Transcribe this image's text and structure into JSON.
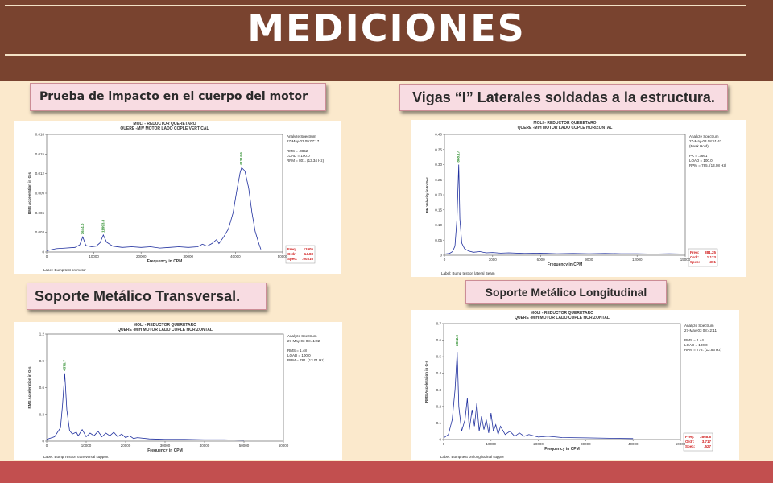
{
  "page": {
    "title": "MEDICIONES"
  },
  "panels": [
    {
      "label": "Prueba de impacto en el cuerpo del motor",
      "chart_data": {
        "type": "line",
        "title_lines": [
          "MOLI - REDUCTOR QUERETARO",
          "QUERE -MIV MOTOR LADO COPLE VERTICAL"
        ],
        "ylabel": "RMS Acceleration in G-s",
        "xlabel": "Frequency in CPM",
        "ylim": [
          0,
          0.018
        ],
        "xlim": [
          0,
          50000
        ],
        "yticks": [
          "0",
          "0.003",
          "0.006",
          "0.009",
          "0.012",
          "0.015",
          "0.018"
        ],
        "xticks": [
          "0",
          "10000",
          "20000",
          "30000",
          "40000",
          "50000"
        ],
        "info": [
          "Analyze Spectrum",
          "27-May-03 09:07:17",
          "",
          "RMS = .0852",
          "LOAD = 100.0",
          "RPM = 801. (13.34 Hz)"
        ],
        "peak_labels": [
          {
            "x": 7644.0,
            "y": 0.0023,
            "text": "7644.0"
          },
          {
            "x": 11993.8,
            "y": 0.0026,
            "text": "11993.8"
          },
          {
            "x": 41314.6,
            "y": 0.0129,
            "text": "41314.6"
          }
        ],
        "footer_label": "Label: Bump test on motor",
        "freq_box": [
          "Freq:",
          "Ordr:",
          "Spec:"
        ],
        "freq_values": [
          "11905",
          "14.83",
          ".00316"
        ],
        "points": [
          [
            0,
            0.0002
          ],
          [
            2000,
            0.0005
          ],
          [
            4000,
            0.0006
          ],
          [
            6000,
            0.0007
          ],
          [
            7000,
            0.0011
          ],
          [
            7644,
            0.0023
          ],
          [
            8300,
            0.001
          ],
          [
            9500,
            0.0008
          ],
          [
            10500,
            0.0009
          ],
          [
            11300,
            0.0014
          ],
          [
            11994,
            0.0026
          ],
          [
            12700,
            0.0015
          ],
          [
            14000,
            0.0009
          ],
          [
            16000,
            0.0007
          ],
          [
            18000,
            0.0008
          ],
          [
            20000,
            0.0007
          ],
          [
            22000,
            0.0008
          ],
          [
            24000,
            0.0006
          ],
          [
            26000,
            0.0007
          ],
          [
            28000,
            0.0008
          ],
          [
            30000,
            0.0007
          ],
          [
            32000,
            0.0008
          ],
          [
            33000,
            0.0012
          ],
          [
            34000,
            0.0009
          ],
          [
            35000,
            0.0013
          ],
          [
            36000,
            0.0019
          ],
          [
            36500,
            0.0013
          ],
          [
            37500,
            0.0023
          ],
          [
            38500,
            0.0035
          ],
          [
            39500,
            0.006
          ],
          [
            40300,
            0.0095
          ],
          [
            41000,
            0.0122
          ],
          [
            41314,
            0.0129
          ],
          [
            42000,
            0.0124
          ],
          [
            42800,
            0.0098
          ],
          [
            43500,
            0.006
          ],
          [
            44200,
            0.0031
          ],
          [
            45000,
            0.0012
          ],
          [
            45400,
            0.0004
          ]
        ]
      }
    },
    {
      "label": "Vigas “I” Laterales soldadas a la estructura.",
      "chart_data": {
        "type": "line",
        "title_lines": [
          "MOLI - REDUCTOR QUERETARO",
          "QUERE -MIH MOTOR LADO COPLE HORIZONTAL"
        ],
        "ylabel": "PK Velocity in In/Sec",
        "xlabel": "Frequency in CPM",
        "ylim": [
          0,
          0.4
        ],
        "xlim": [
          0,
          15000
        ],
        "yticks": [
          "0",
          "0.05",
          "0.10",
          "0.15",
          "0.20",
          "0.25",
          "0.30",
          "0.35",
          "0.40"
        ],
        "xticks": [
          "0",
          "3000",
          "6000",
          "9000",
          "12000",
          "15000"
        ],
        "info": [
          "Analyze Spectrum",
          "27-May-03 08:51:43",
          "(Peak Hold)",
          "",
          "PK = .3661",
          "LOAD = 100.0",
          "RPM = 785. (13.08 Hz)"
        ],
        "peak_labels": [
          {
            "x": 888.17,
            "y": 0.3,
            "text": "888.17"
          }
        ],
        "footer_label": "Label: Bump test on lateral Beam",
        "freq_box": [
          "Freq:",
          "Ordr:",
          "Spec:"
        ],
        "freq_values": [
          "881.25",
          "1.123",
          ".301"
        ],
        "points": [
          [
            0,
            0.004
          ],
          [
            300,
            0.006
          ],
          [
            500,
            0.012
          ],
          [
            650,
            0.03
          ],
          [
            780,
            0.12
          ],
          [
            888,
            0.3
          ],
          [
            960,
            0.12
          ],
          [
            1080,
            0.04
          ],
          [
            1250,
            0.022
          ],
          [
            1500,
            0.014
          ],
          [
            1800,
            0.01
          ],
          [
            2200,
            0.012
          ],
          [
            2600,
            0.008
          ],
          [
            3000,
            0.009
          ],
          [
            3500,
            0.007
          ],
          [
            4000,
            0.008
          ],
          [
            5000,
            0.006
          ],
          [
            6000,
            0.007
          ],
          [
            7000,
            0.005
          ],
          [
            8000,
            0.006
          ],
          [
            9000,
            0.005
          ],
          [
            10000,
            0.006
          ],
          [
            11000,
            0.005
          ],
          [
            12000,
            0.005
          ],
          [
            13000,
            0.004
          ],
          [
            14000,
            0.005
          ],
          [
            15000,
            0.004
          ]
        ]
      }
    },
    {
      "label": "Soporte Metálico Transversal.",
      "chart_data": {
        "type": "line",
        "title_lines": [
          "MOLI - REDUCTOR QUERETARO",
          "QUERE -MIH MOTOR LADO COPLE HORIZONTAL"
        ],
        "ylabel": "RMS Acceleration in G-s",
        "xlabel": "Frequency in CPM",
        "ylim": [
          0,
          1.2
        ],
        "xlim": [
          0,
          60000
        ],
        "yticks": [
          "0",
          "0.3",
          "0.6",
          "0.9",
          "1.2"
        ],
        "xticks": [
          "0",
          "10000",
          "20000",
          "30000",
          "40000",
          "50000",
          "60000"
        ],
        "info": [
          "Analyze Spectrum",
          "27-May-03 08:41:02",
          "",
          "RMS = 1.48",
          "LOAD = 100.0",
          "RPM = 781. (13.01 Hz)"
        ],
        "peak_labels": [
          {
            "x": 4578.7,
            "y": 0.76,
            "text": "4578.7"
          }
        ],
        "footer_label": "Label: Bump Test on transversal support",
        "freq_box": [],
        "freq_values": [],
        "points": [
          [
            0,
            0.02
          ],
          [
            2000,
            0.05
          ],
          [
            3500,
            0.15
          ],
          [
            4000,
            0.4
          ],
          [
            4578,
            0.76
          ],
          [
            5100,
            0.35
          ],
          [
            5800,
            0.12
          ],
          [
            6500,
            0.08
          ],
          [
            7500,
            0.1
          ],
          [
            8000,
            0.06
          ],
          [
            9000,
            0.13
          ],
          [
            10000,
            0.05
          ],
          [
            11000,
            0.09
          ],
          [
            12000,
            0.06
          ],
          [
            13000,
            0.11
          ],
          [
            14000,
            0.05
          ],
          [
            15000,
            0.09
          ],
          [
            16000,
            0.06
          ],
          [
            17000,
            0.1
          ],
          [
            18000,
            0.05
          ],
          [
            19000,
            0.08
          ],
          [
            20000,
            0.04
          ],
          [
            21000,
            0.06
          ],
          [
            22000,
            0.03
          ],
          [
            23000,
            0.04
          ],
          [
            26000,
            0.025
          ],
          [
            30000,
            0.02
          ],
          [
            35000,
            0.02
          ],
          [
            40000,
            0.015
          ],
          [
            45000,
            0.015
          ],
          [
            50000,
            0.01
          ]
        ]
      }
    },
    {
      "label": "Soporte Metálico Longitudinal",
      "chart_data": {
        "type": "line",
        "title_lines": [
          "MOLI - REDUCTOR QUERETARO",
          "QUERE -MIH MOTOR LADO COPLE HORIZONTAL"
        ],
        "ylabel": "RMS Acceleration in G-s",
        "xlabel": "Frequency in CPM",
        "ylim": [
          0,
          0.7
        ],
        "xlim": [
          0,
          50000
        ],
        "yticks": [
          "0",
          "0.1",
          "0.2",
          "0.3",
          "0.4",
          "0.5",
          "0.6",
          "0.7"
        ],
        "xticks": [
          "0",
          "10000",
          "20000",
          "30000",
          "40000",
          "50000"
        ],
        "info": [
          "Analyze Spectrum",
          "27-May-03 08:42:11",
          "",
          "RMS = 1.44",
          "LOAD = 100.0",
          "RPM = 772. (12.86 Hz)"
        ],
        "peak_labels": [
          {
            "x": 2862.3,
            "y": 0.55,
            "text": "2862.3"
          }
        ],
        "footer_label": "Label: Bump test on longitudinal suppor",
        "freq_box": [
          "Freq:",
          "Ordr:",
          "Spec:"
        ],
        "freq_values": [
          "2868.8",
          "3.717",
          ".527"
        ],
        "points": [
          [
            0,
            0.01
          ],
          [
            1000,
            0.03
          ],
          [
            1800,
            0.12
          ],
          [
            2400,
            0.3
          ],
          [
            2862,
            0.53
          ],
          [
            3200,
            0.2
          ],
          [
            3800,
            0.05
          ],
          [
            4500,
            0.12
          ],
          [
            5000,
            0.25
          ],
          [
            5400,
            0.06
          ],
          [
            6000,
            0.18
          ],
          [
            6500,
            0.08
          ],
          [
            7000,
            0.22
          ],
          [
            7500,
            0.05
          ],
          [
            8000,
            0.14
          ],
          [
            8500,
            0.06
          ],
          [
            9000,
            0.12
          ],
          [
            9500,
            0.04
          ],
          [
            10000,
            0.16
          ],
          [
            10500,
            0.05
          ],
          [
            11000,
            0.09
          ],
          [
            11500,
            0.03
          ],
          [
            12000,
            0.08
          ],
          [
            13000,
            0.03
          ],
          [
            14000,
            0.05
          ],
          [
            15000,
            0.02
          ],
          [
            16000,
            0.04
          ],
          [
            17000,
            0.02
          ],
          [
            18000,
            0.03
          ],
          [
            20000,
            0.015
          ],
          [
            22000,
            0.02
          ],
          [
            25000,
            0.012
          ],
          [
            30000,
            0.01
          ],
          [
            35000,
            0.008
          ],
          [
            40000,
            0.006
          ]
        ]
      }
    }
  ]
}
